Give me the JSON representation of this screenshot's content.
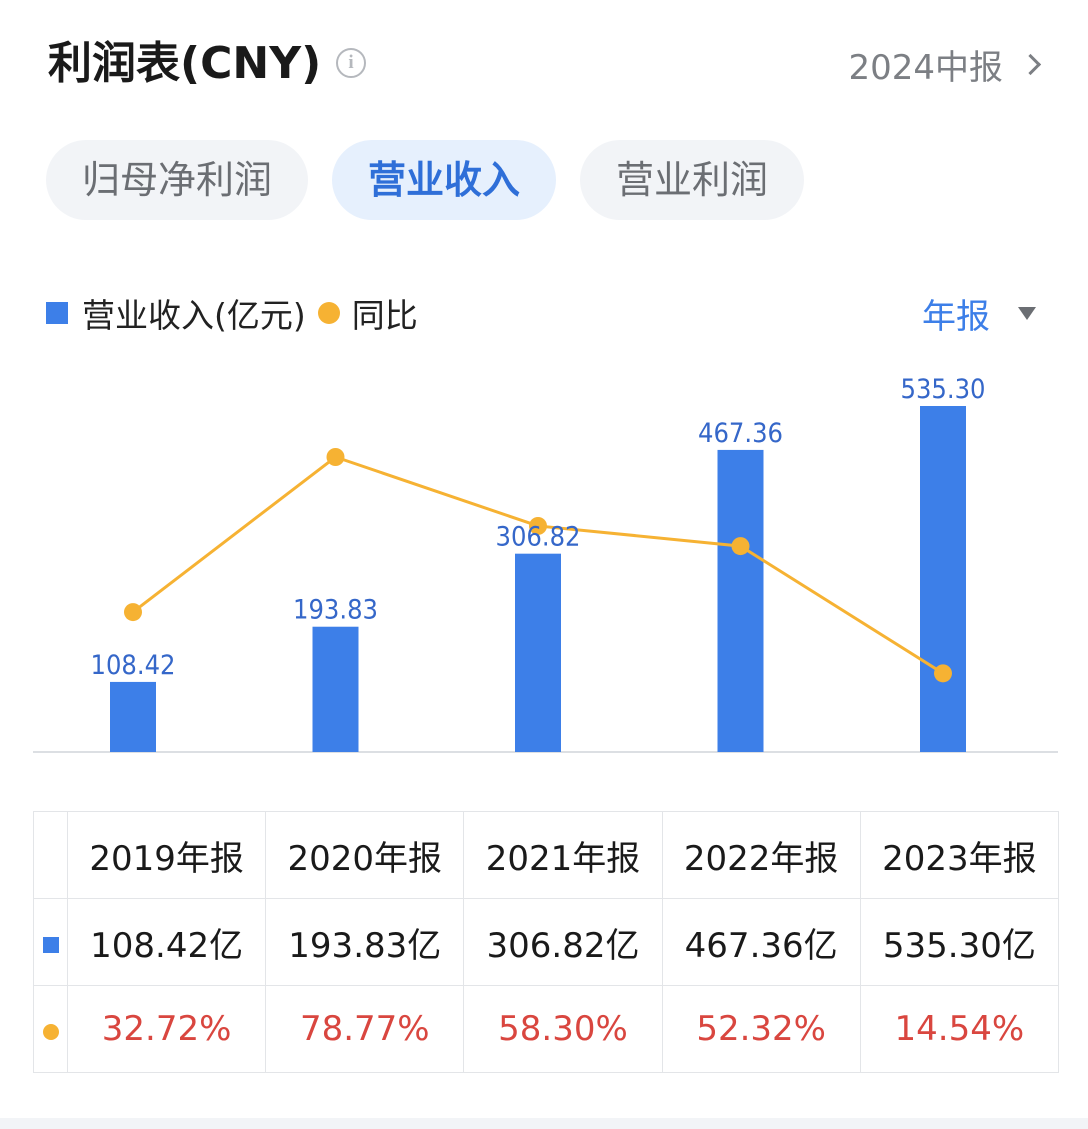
{
  "header": {
    "title": "利润表(CNY)",
    "info_icon": "info-icon",
    "period": "2024中报"
  },
  "tabs": [
    {
      "label": "归母净利润",
      "active": false
    },
    {
      "label": "营业收入",
      "active": true
    },
    {
      "label": "营业利润",
      "active": false
    }
  ],
  "legend": {
    "bar_label": "营业收入(亿元)",
    "line_label": "同比"
  },
  "report_type": "年报",
  "colors": {
    "bar": "#3d7fe8",
    "line": "#f6b233",
    "pct_text": "#d9463f",
    "accent": "#2f6fd8"
  },
  "chart_data": {
    "type": "bar",
    "categories": [
      "2019年报",
      "2020年报",
      "2021年报",
      "2022年报",
      "2023年报"
    ],
    "series": [
      {
        "name": "营业收入(亿元)",
        "type": "bar",
        "values": [
          108.42,
          193.83,
          306.82,
          467.36,
          535.3
        ],
        "labels": [
          "108.42",
          "193.83",
          "306.82",
          "467.36",
          "535.30"
        ]
      },
      {
        "name": "同比",
        "type": "line",
        "values": [
          32.72,
          78.77,
          58.3,
          52.32,
          14.54
        ]
      }
    ],
    "title": "",
    "xlabel": "",
    "ylabel": ""
  },
  "table": {
    "headers": [
      "2019年报",
      "2020年报",
      "2021年报",
      "2022年报",
      "2023年报"
    ],
    "revenue_row": [
      "108.42亿",
      "193.83亿",
      "306.82亿",
      "467.36亿",
      "535.30亿"
    ],
    "yoy_row": [
      "32.72%",
      "78.77%",
      "58.30%",
      "52.32%",
      "14.54%"
    ]
  }
}
